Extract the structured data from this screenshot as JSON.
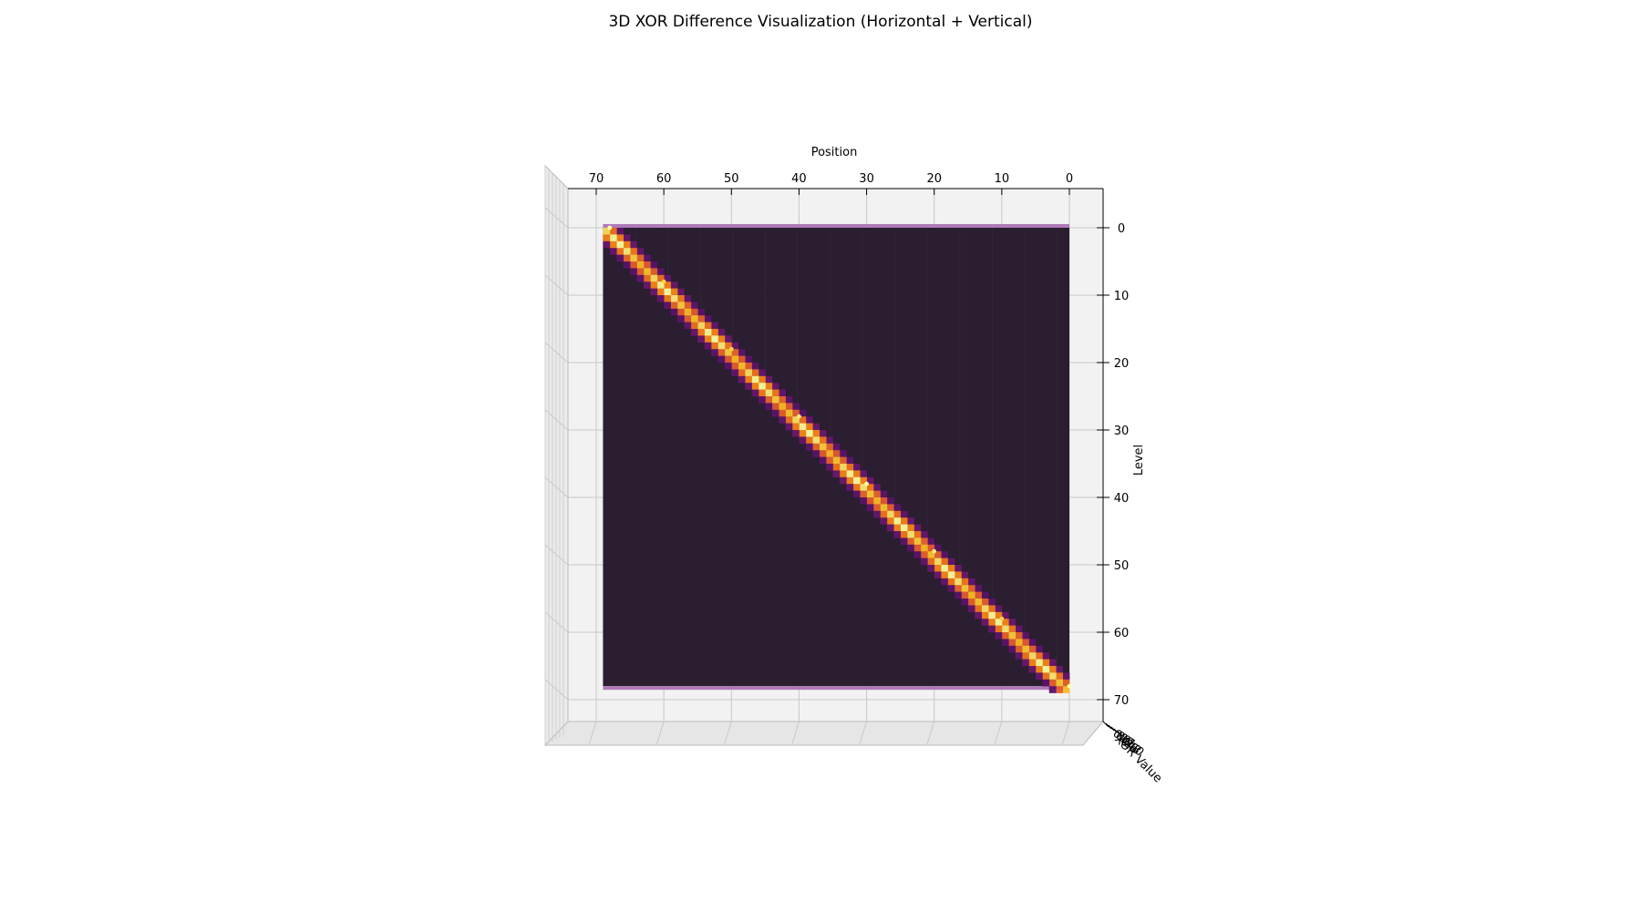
{
  "chart_data": {
    "type": "surface3d",
    "title": "3D XOR Difference Visualization (Horizontal + Vertical)",
    "xlabel": "Position",
    "ylabel": "Level",
    "zlabel": "XOR Value",
    "x_ticks": [
      70,
      60,
      50,
      40,
      30,
      20,
      10,
      0
    ],
    "y_ticks": [
      0,
      10,
      20,
      30,
      40,
      50,
      60,
      70
    ],
    "z_ticks": [
      0.0,
      0.2,
      0.4,
      0.6,
      0.8,
      1.0
    ],
    "xlim": [
      0,
      72
    ],
    "ylim": [
      0,
      72
    ],
    "zlim": [
      0,
      1
    ],
    "grid": true,
    "colormap": "magma",
    "colors": {
      "background_panel": "#f2f2f2",
      "grid_line": "#c8c8c8",
      "surface_low": "#231729",
      "edge_strip": "#b07ab8"
    },
    "surface": {
      "grid_size": 69,
      "description_of_values": "XOR difference is near 0 everywhere except a band along the anti-diagonal where Position + Level ≈ 68",
      "band": [
        {
          "position": 68,
          "level": 0,
          "value": 1.0
        },
        {
          "position": 60,
          "level": 8,
          "value": 0.9
        },
        {
          "position": 50,
          "level": 18,
          "value": 0.9
        },
        {
          "position": 40,
          "level": 28,
          "value": 0.95
        },
        {
          "position": 30,
          "level": 38,
          "value": 1.0
        },
        {
          "position": 20,
          "level": 48,
          "value": 0.95
        },
        {
          "position": 10,
          "level": 58,
          "value": 0.9
        },
        {
          "position": 0,
          "level": 68,
          "value": 1.0
        }
      ],
      "background_value": 0.0
    }
  }
}
